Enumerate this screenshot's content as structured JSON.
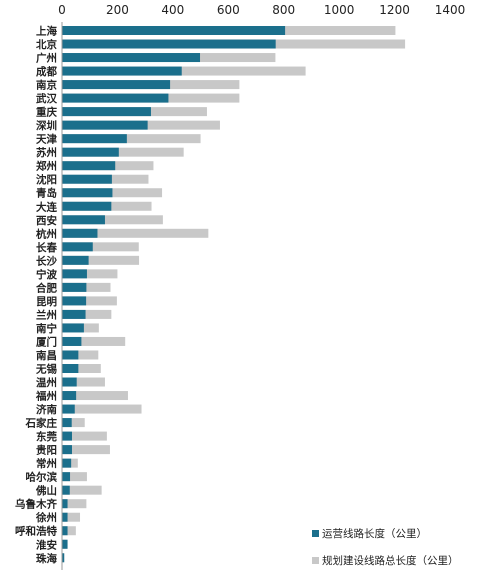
{
  "chart_data": {
    "type": "bar",
    "orientation": "horizontal",
    "stacking": "overlay",
    "xlim": [
      0,
      1400
    ],
    "x_ticks": [
      0,
      200,
      400,
      600,
      800,
      1000,
      1200,
      1400
    ],
    "grid": false,
    "legend_position": "bottom-right",
    "categories": [
      "上海",
      "北京",
      "广州",
      "成都",
      "南京",
      "武汉",
      "重庆",
      "深圳",
      "天津",
      "苏州",
      "郑州",
      "沈阳",
      "青岛",
      "大连",
      "西安",
      "杭州",
      "长春",
      "长沙",
      "宁波",
      "合肥",
      "昆明",
      "兰州",
      "南宁",
      "厦门",
      "南昌",
      "无锡",
      "温州",
      "福州",
      "济南",
      "石家庄",
      "东莞",
      "贵阳",
      "常州",
      "哈尔滨",
      "佛山",
      "乌鲁木齐",
      "徐州",
      "呼和浩特",
      "淮安",
      "珠海"
    ],
    "series": [
      {
        "name": "运营线路长度（公里）",
        "color": "#1b6f8c",
        "values": [
          805,
          771,
          498,
          432,
          390,
          384,
          321,
          309,
          234,
          205,
          192,
          180,
          182,
          178,
          155,
          128,
          111,
          96,
          90,
          88,
          87,
          85,
          79,
          70,
          59,
          59,
          53,
          51,
          46,
          35,
          36,
          36,
          33,
          29,
          28,
          20,
          20,
          20,
          20,
          8
        ]
      },
      {
        "name": "规划建设线路总长度（公里）",
        "color": "#c8c8c8",
        "values": [
          1203,
          1238,
          770,
          879,
          640,
          640,
          523,
          570,
          500,
          439,
          330,
          312,
          361,
          323,
          364,
          528,
          277,
          278,
          200,
          175,
          198,
          178,
          133,
          228,
          131,
          140,
          155,
          238,
          287,
          82,
          162,
          173,
          57,
          90,
          143,
          88,
          65,
          50,
          20,
          8
        ]
      }
    ]
  }
}
